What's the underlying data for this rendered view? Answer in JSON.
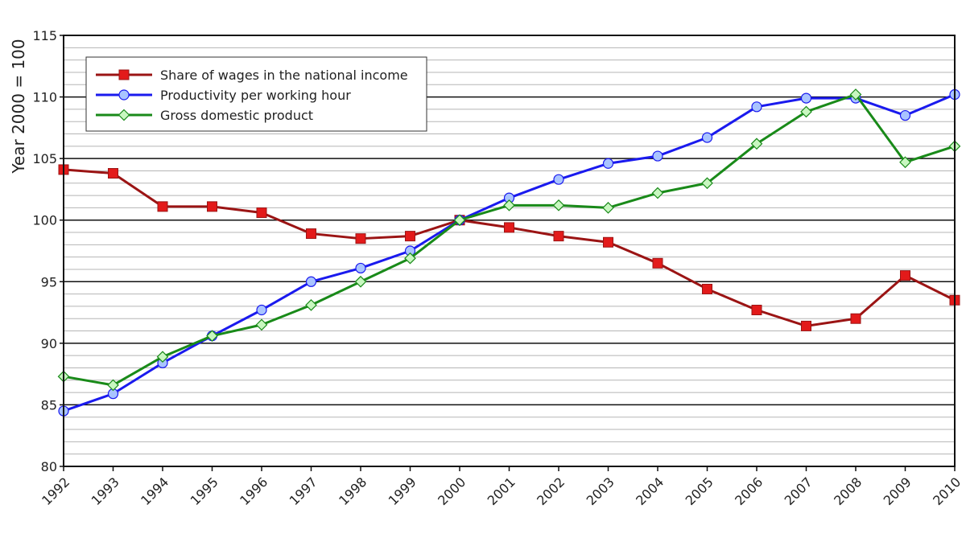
{
  "chart_data": {
    "type": "line",
    "title": "",
    "xlabel": "",
    "ylabel": "Year 2000 = 100",
    "ylim": [
      80,
      115
    ],
    "y_ticks": [
      80,
      85,
      90,
      95,
      100,
      105,
      110,
      115
    ],
    "y_minor_step": 1,
    "grid": true,
    "legend_position": "top-left",
    "categories": [
      "1992",
      "1993",
      "1994",
      "1995",
      "1996",
      "1997",
      "1998",
      "1999",
      "2000",
      "2001",
      "2002",
      "2003",
      "2004",
      "2005",
      "2006",
      "2007",
      "2008",
      "2009",
      "2010"
    ],
    "series": [
      {
        "name": "Share of wages in the national income",
        "color": "#9b1414",
        "marker": "square",
        "marker_fill": "#e31a1a",
        "values": [
          104.1,
          103.8,
          101.1,
          101.1,
          100.6,
          98.9,
          98.5,
          98.7,
          100.0,
          99.4,
          98.7,
          98.2,
          96.5,
          94.4,
          92.7,
          91.4,
          92.0,
          95.5,
          93.5
        ]
      },
      {
        "name": "Productivity per working hour",
        "color": "#1a1aee",
        "marker": "circle",
        "marker_fill": "#a9c4ff",
        "values": [
          84.5,
          85.9,
          88.4,
          90.6,
          92.7,
          95.0,
          96.1,
          97.5,
          100.0,
          101.8,
          103.3,
          104.6,
          105.2,
          106.7,
          109.2,
          109.9,
          109.9,
          108.5,
          110.2
        ]
      },
      {
        "name": "Gross domestic product",
        "color": "#198a19",
        "marker": "diamond",
        "marker_fill": "#c8f7c0",
        "values": [
          87.3,
          86.6,
          88.9,
          90.6,
          91.5,
          93.1,
          95.0,
          96.9,
          100.0,
          101.2,
          101.2,
          101.0,
          102.2,
          103.0,
          106.2,
          108.8,
          110.2,
          104.7,
          106.0
        ]
      }
    ]
  }
}
